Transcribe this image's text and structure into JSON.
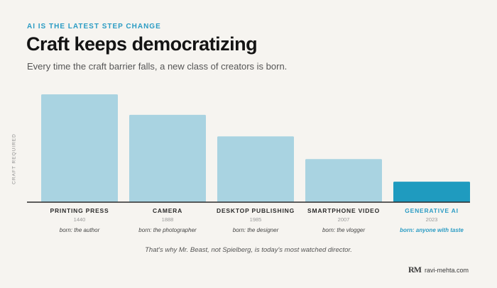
{
  "header": {
    "eyebrow": "AI IS THE LATEST STEP CHANGE",
    "title": "Craft keeps democratizing",
    "subtitle": "Every time the craft barrier falls, a new class of creators is born."
  },
  "chart_data": {
    "type": "bar",
    "ylabel": "CRAFT REQUIRED",
    "categories": [
      "PRINTING PRESS",
      "CAMERA",
      "DESKTOP PUBLISHING",
      "SMARTPHONE VIDEO",
      "GENERATIVE AI"
    ],
    "years": [
      "1440",
      "1888",
      "1985",
      "2007",
      "2023"
    ],
    "born": [
      "born: the author",
      "born: the photographer",
      "born: the designer",
      "born: the vlogger",
      "born: anyone with taste"
    ],
    "values": [
      100,
      81,
      61,
      40,
      19
    ],
    "ylim": [
      0,
      100
    ],
    "highlight_index": 4,
    "colors": {
      "bar": "#a9d3e1",
      "highlight": "#1f9bbf",
      "axis": "#2a2a2a"
    },
    "grid": false
  },
  "footnote": "That's why Mr. Beast, not Spielberg, is today's most watched director.",
  "brand": {
    "logo": "RM",
    "url": "ravi-mehta.com"
  }
}
